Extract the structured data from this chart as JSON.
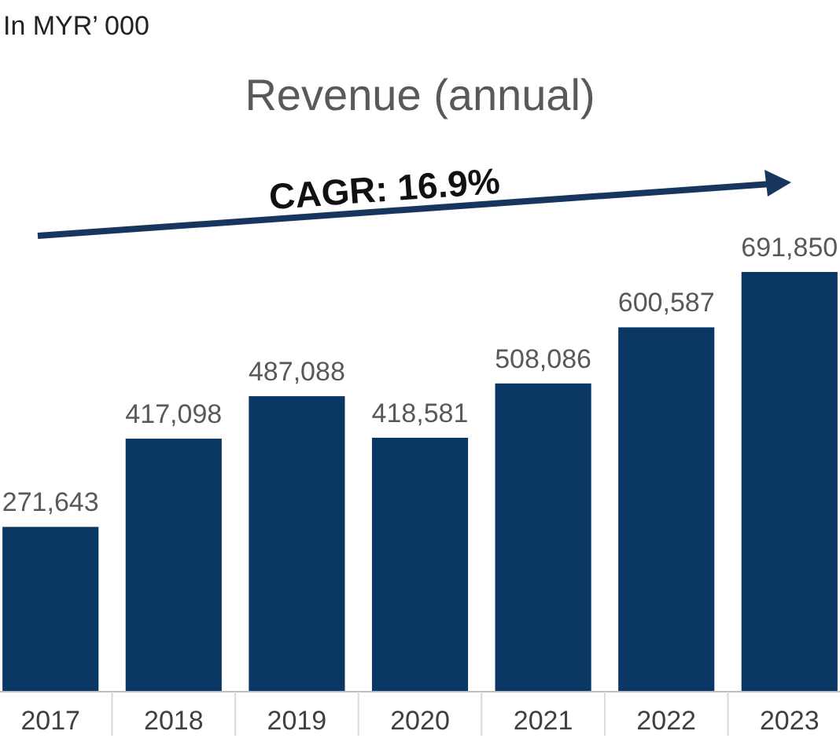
{
  "chart_data": {
    "type": "bar",
    "title": "Revenue (annual)",
    "categories": [
      "2017",
      "2018",
      "2019",
      "2020",
      "2021",
      "2022",
      "2023"
    ],
    "values": [
      271643,
      417098,
      487088,
      418581,
      508086,
      600587,
      691850
    ],
    "color": "#0b3764",
    "value_labels": [
      "271,643",
      "417,098",
      "487,088",
      "418,581",
      "508,086",
      "600,587",
      "691,850"
    ],
    "annotations": [
      "In MYR’ 000",
      "CAGR: 16.9%"
    ]
  }
}
